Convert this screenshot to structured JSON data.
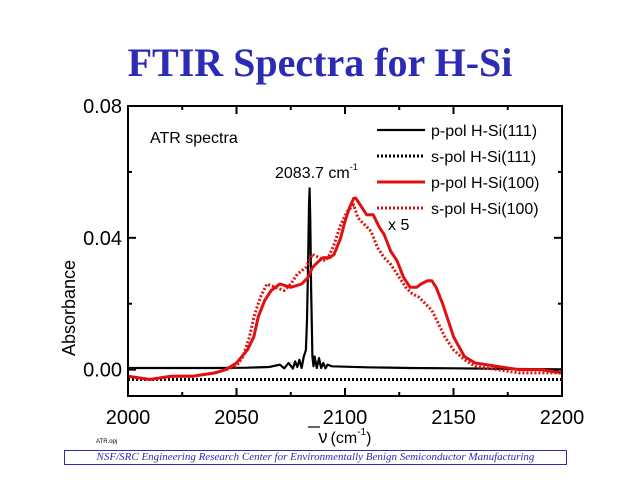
{
  "slide_title": "FTIR Spectra for H-Si",
  "footer": "NSF/SRC Engineering Research Center for Environmentally Benign Semiconductor Manufacturing",
  "file_label": "ATR.opj",
  "chart_data": {
    "type": "line",
    "title": "FTIR Spectra for H-Si",
    "xlabel_symbol": "ν",
    "xlabel_unit": "(cm",
    "xlabel_exp": "-1",
    "xlabel_close": ")",
    "ylabel": "Absorbance",
    "xlim": [
      2000,
      2200
    ],
    "ylim": [
      -0.008,
      0.08
    ],
    "xticks": [
      2000,
      2050,
      2100,
      2150,
      2200
    ],
    "xtick_labels": [
      "2000",
      "2050",
      "2100",
      "2150",
      "2200"
    ],
    "yticks": [
      0.0,
      0.04,
      0.08
    ],
    "ytick_labels": [
      "0.00",
      "0.04",
      "0.08"
    ],
    "annotations": {
      "panel_label": "ATR spectra",
      "peak_text": "2083.7 cm",
      "peak_exp": "-1",
      "scale_text": "x 5"
    },
    "legend_position": "top-right",
    "series": [
      {
        "name": "p-pol H-Si(111)",
        "color": "#000000",
        "style": "solid",
        "x": [
          2000,
          2020,
          2040,
          2055,
          2065,
          2070,
          2072,
          2074,
          2076,
          2077,
          2078,
          2079,
          2080,
          2081,
          2082,
          2082.5,
          2083.0,
          2083.4,
          2083.7,
          2084.0,
          2084.4,
          2085,
          2085.5,
          2086,
          2087,
          2088,
          2089,
          2090,
          2091,
          2092,
          2094,
          2100,
          2110,
          2130,
          2150,
          2180,
          2200
        ],
        "y": [
          0.0005,
          0.0005,
          0.0005,
          0.0006,
          0.0008,
          0.0015,
          0.0004,
          0.002,
          0.0003,
          0.0025,
          0.0008,
          0.003,
          0.0005,
          0.004,
          0.006,
          0.015,
          0.032,
          0.05,
          0.055,
          0.045,
          0.025,
          0.004,
          0.001,
          0.004,
          0.0005,
          0.0035,
          0.0005,
          0.002,
          0.0004,
          0.0015,
          0.001,
          0.0009,
          0.0007,
          0.0005,
          0.0004,
          0.0002,
          0.0001
        ]
      },
      {
        "name": "s-pol H-Si(111)",
        "color": "#000000",
        "style": "dotted",
        "x": [
          2000,
          2050,
          2100,
          2150,
          2200
        ],
        "y": [
          -0.003,
          -0.003,
          -0.003,
          -0.003,
          -0.003
        ]
      },
      {
        "name": "p-pol H-Si(100)",
        "color": "#e01010",
        "style": "solid",
        "x": [
          2000,
          2010,
          2020,
          2030,
          2040,
          2045,
          2050,
          2055,
          2058,
          2060,
          2063,
          2066,
          2070,
          2075,
          2080,
          2083,
          2085,
          2088,
          2090,
          2093,
          2095,
          2098,
          2100,
          2102,
          2104,
          2105,
          2107,
          2110,
          2113,
          2116,
          2118,
          2121,
          2124,
          2127,
          2130,
          2133,
          2135,
          2138,
          2140,
          2142,
          2145,
          2148,
          2150,
          2155,
          2160,
          2170,
          2180,
          2190,
          2200
        ],
        "y": [
          -0.002,
          -0.003,
          -0.002,
          -0.002,
          -0.001,
          0.0,
          0.002,
          0.006,
          0.01,
          0.016,
          0.021,
          0.024,
          0.026,
          0.025,
          0.026,
          0.028,
          0.031,
          0.033,
          0.034,
          0.034,
          0.035,
          0.04,
          0.045,
          0.049,
          0.052,
          0.052,
          0.05,
          0.047,
          0.047,
          0.043,
          0.041,
          0.036,
          0.033,
          0.028,
          0.025,
          0.025,
          0.026,
          0.027,
          0.027,
          0.025,
          0.02,
          0.014,
          0.01,
          0.004,
          0.002,
          0.001,
          0.0,
          0.0,
          -0.001
        ]
      },
      {
        "name": "s-pol H-Si(100)",
        "color": "#e01010",
        "style": "dotted",
        "x": [
          2000,
          2010,
          2020,
          2030,
          2040,
          2045,
          2050,
          2053,
          2056,
          2058,
          2061,
          2064,
          2068,
          2072,
          2075,
          2078,
          2082,
          2085,
          2088,
          2091,
          2093,
          2095,
          2098,
          2101,
          2104,
          2106,
          2109,
          2112,
          2115,
          2118,
          2121,
          2124,
          2128,
          2131,
          2134,
          2137,
          2140,
          2143,
          2146,
          2150,
          2155,
          2160,
          2170,
          2180,
          2190,
          2200
        ],
        "y": [
          -0.002,
          -0.003,
          -0.002,
          -0.002,
          -0.001,
          0.0,
          0.001,
          0.004,
          0.01,
          0.016,
          0.022,
          0.026,
          0.025,
          0.024,
          0.026,
          0.029,
          0.031,
          0.035,
          0.034,
          0.033,
          0.035,
          0.038,
          0.044,
          0.048,
          0.05,
          0.046,
          0.044,
          0.042,
          0.037,
          0.034,
          0.032,
          0.029,
          0.025,
          0.023,
          0.022,
          0.02,
          0.018,
          0.014,
          0.01,
          0.006,
          0.003,
          0.001,
          0.0,
          -0.001,
          -0.001,
          -0.001
        ]
      }
    ]
  }
}
